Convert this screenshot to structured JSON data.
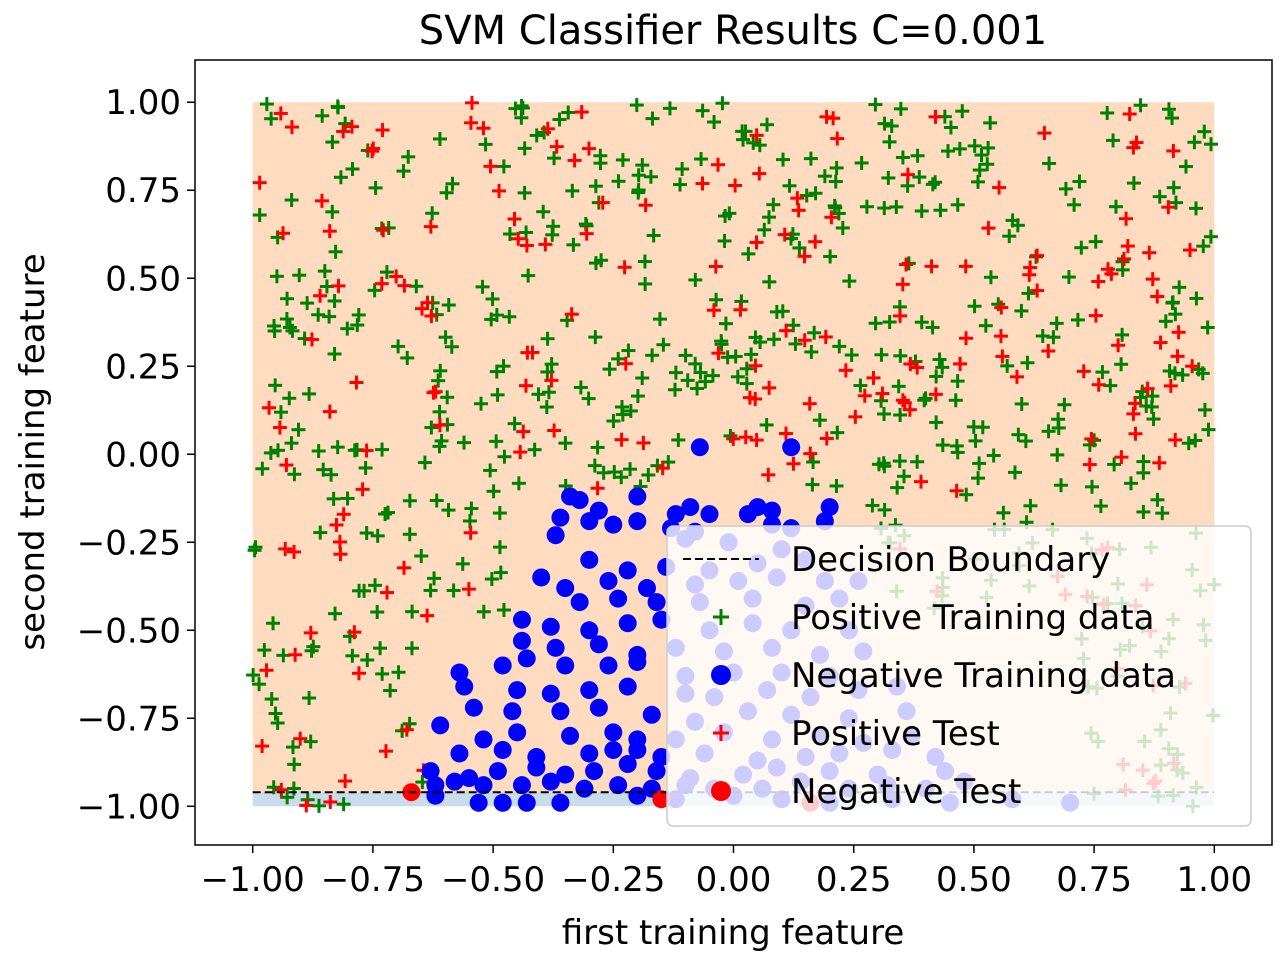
{
  "chart_data": {
    "type": "scatter",
    "title": "SVM Classifier Results C=0.001",
    "xlabel": "first training feature",
    "ylabel": "second training feature",
    "xlim": [
      -1.12,
      1.12
    ],
    "ylim": [
      -1.11,
      1.12
    ],
    "x_ticks": [
      -1.0,
      -0.75,
      -0.5,
      -0.25,
      0.0,
      0.25,
      0.5,
      0.75,
      1.0
    ],
    "y_ticks": [
      -1.0,
      -0.75,
      -0.5,
      -0.25,
      0.0,
      0.25,
      0.5,
      0.75,
      1.0
    ],
    "x_tick_labels": [
      "−1.00",
      "−0.75",
      "−0.50",
      "−0.25",
      "0.00",
      "0.25",
      "0.50",
      "0.75",
      "1.00"
    ],
    "y_tick_labels": [
      "−1.00",
      "−0.75",
      "−0.50",
      "−0.25",
      "0.00",
      "0.25",
      "0.50",
      "0.75",
      "1.00"
    ],
    "grid": false,
    "legend_position": "bottom-right",
    "decision_boundary_y": -0.96,
    "regions": [
      {
        "label": "positive region",
        "color": "#ffdcc0",
        "y_range": [
          -0.96,
          1.0
        ],
        "x_range": [
          -1.0,
          1.0
        ]
      },
      {
        "label": "negative region",
        "color": "#c9dcec",
        "y_range": [
          -1.0,
          -0.96
        ],
        "x_range": [
          -1.0,
          1.0
        ]
      }
    ],
    "legend": [
      {
        "label": "Decision Boundary",
        "marker": "dashed-line",
        "color": "#000000"
      },
      {
        "label": "Positive Training data",
        "marker": "plus",
        "color": "#008000"
      },
      {
        "label": "Negative Training data",
        "marker": "circle",
        "color": "#0000ff"
      },
      {
        "label": "Positive Test",
        "marker": "plus",
        "color": "#ff0000"
      },
      {
        "label": "Negative Test",
        "marker": "circle",
        "color": "#ff0000"
      }
    ],
    "series": [
      {
        "key": "positive_training",
        "marker": "plus",
        "color": "#008000",
        "count": 540,
        "seed": 11
      },
      {
        "key": "positive_test",
        "marker": "plus",
        "color": "#ff0000",
        "count": 210,
        "seed": 29
      },
      {
        "key": "negative_training",
        "marker": "circle",
        "color": "#0000ff",
        "points": [
          [
            -0.07,
            0.02
          ],
          [
            0.12,
            0.02
          ],
          [
            -0.34,
            -0.12
          ],
          [
            -0.32,
            -0.13
          ],
          [
            -0.28,
            -0.16
          ],
          [
            -0.2,
            -0.12
          ],
          [
            -0.12,
            -0.17
          ],
          [
            -0.09,
            -0.15
          ],
          [
            -0.05,
            -0.17
          ],
          [
            0.03,
            -0.17
          ],
          [
            0.05,
            -0.15
          ],
          [
            0.08,
            -0.16
          ],
          [
            0.2,
            -0.15
          ],
          [
            0.19,
            -0.19
          ],
          [
            0.12,
            -0.21
          ],
          [
            0.08,
            -0.2
          ],
          [
            -0.36,
            -0.18
          ],
          [
            -0.3,
            -0.19
          ],
          [
            -0.25,
            -0.2
          ],
          [
            -0.2,
            -0.19
          ],
          [
            -0.13,
            -0.21
          ],
          [
            -0.08,
            -0.22
          ],
          [
            -0.37,
            -0.23
          ],
          [
            -0.1,
            -0.24
          ],
          [
            -0.01,
            -0.25
          ],
          [
            0.1,
            -0.27
          ],
          [
            0.15,
            -0.3
          ],
          [
            -0.3,
            -0.3
          ],
          [
            -0.22,
            -0.33
          ],
          [
            -0.14,
            -0.32
          ],
          [
            -0.05,
            -0.33
          ],
          [
            0.05,
            -0.31
          ],
          [
            -0.4,
            -0.35
          ],
          [
            -0.35,
            -0.38
          ],
          [
            -0.26,
            -0.36
          ],
          [
            -0.18,
            -0.38
          ],
          [
            -0.08,
            -0.37
          ],
          [
            0.01,
            -0.36
          ],
          [
            0.09,
            -0.35
          ],
          [
            0.19,
            -0.36
          ],
          [
            0.26,
            -0.36
          ],
          [
            -0.32,
            -0.42
          ],
          [
            -0.24,
            -0.41
          ],
          [
            -0.16,
            -0.42
          ],
          [
            -0.07,
            -0.42
          ],
          [
            0.04,
            -0.41
          ],
          [
            0.15,
            -0.43
          ],
          [
            0.22,
            -0.41
          ],
          [
            -0.44,
            -0.47
          ],
          [
            -0.38,
            -0.49
          ],
          [
            -0.3,
            -0.5
          ],
          [
            -0.22,
            -0.48
          ],
          [
            -0.15,
            -0.47
          ],
          [
            -0.05,
            -0.5
          ],
          [
            0.04,
            -0.48
          ],
          [
            0.12,
            -0.5
          ],
          [
            0.24,
            -0.5
          ],
          [
            -0.44,
            -0.53
          ],
          [
            -0.37,
            -0.55
          ],
          [
            -0.28,
            -0.54
          ],
          [
            -0.2,
            -0.57
          ],
          [
            -0.12,
            -0.55
          ],
          [
            -0.02,
            -0.56
          ],
          [
            0.08,
            -0.55
          ],
          [
            0.18,
            -0.57
          ],
          [
            0.27,
            -0.56
          ],
          [
            -0.57,
            -0.62
          ],
          [
            -0.48,
            -0.6
          ],
          [
            -0.43,
            -0.58
          ],
          [
            -0.35,
            -0.6
          ],
          [
            -0.26,
            -0.6
          ],
          [
            -0.2,
            -0.59
          ],
          [
            -0.1,
            -0.63
          ],
          [
            0.0,
            -0.62
          ],
          [
            0.1,
            -0.62
          ],
          [
            0.2,
            -0.63
          ],
          [
            -0.56,
            -0.66
          ],
          [
            -0.45,
            -0.67
          ],
          [
            -0.38,
            -0.68
          ],
          [
            -0.3,
            -0.67
          ],
          [
            -0.22,
            -0.66
          ],
          [
            -0.1,
            -0.68
          ],
          [
            -0.04,
            -0.69
          ],
          [
            0.07,
            -0.67
          ],
          [
            0.16,
            -0.69
          ],
          [
            0.26,
            -0.67
          ],
          [
            0.34,
            -0.66
          ],
          [
            -0.54,
            -0.72
          ],
          [
            -0.46,
            -0.73
          ],
          [
            -0.36,
            -0.73
          ],
          [
            -0.28,
            -0.72
          ],
          [
            -0.17,
            -0.74
          ],
          [
            -0.08,
            -0.76
          ],
          [
            0.03,
            -0.73
          ],
          [
            0.12,
            -0.74
          ],
          [
            0.24,
            -0.75
          ],
          [
            0.36,
            -0.73
          ],
          [
            -0.61,
            -0.77
          ],
          [
            -0.52,
            -0.81
          ],
          [
            -0.45,
            -0.79
          ],
          [
            -0.34,
            -0.8
          ],
          [
            -0.25,
            -0.79
          ],
          [
            -0.2,
            -0.81
          ],
          [
            -0.12,
            -0.81
          ],
          [
            -0.02,
            -0.79
          ],
          [
            0.08,
            -0.81
          ],
          [
            0.18,
            -0.8
          ],
          [
            0.27,
            -0.82
          ],
          [
            0.37,
            -0.8
          ],
          [
            -0.57,
            -0.85
          ],
          [
            -0.48,
            -0.84
          ],
          [
            -0.41,
            -0.86
          ],
          [
            -0.3,
            -0.85
          ],
          [
            -0.25,
            -0.84
          ],
          [
            -0.2,
            -0.84
          ],
          [
            -0.15,
            -0.86
          ],
          [
            -0.06,
            -0.85
          ],
          [
            0.05,
            -0.87
          ],
          [
            0.15,
            -0.86
          ],
          [
            0.22,
            -0.85
          ],
          [
            0.33,
            -0.84
          ],
          [
            0.42,
            -0.86
          ],
          [
            -0.63,
            -0.9
          ],
          [
            -0.55,
            -0.92
          ],
          [
            -0.49,
            -0.9
          ],
          [
            -0.41,
            -0.89
          ],
          [
            -0.35,
            -0.91
          ],
          [
            -0.29,
            -0.9
          ],
          [
            -0.22,
            -0.88
          ],
          [
            -0.16,
            -0.9
          ],
          [
            -0.09,
            -0.92
          ],
          [
            0.02,
            -0.91
          ],
          [
            0.09,
            -0.89
          ],
          [
            0.2,
            -0.9
          ],
          [
            0.3,
            -0.91
          ],
          [
            0.44,
            -0.9
          ],
          [
            -0.62,
            -0.94
          ],
          [
            -0.58,
            -0.93
          ],
          [
            -0.52,
            -0.94
          ],
          [
            -0.44,
            -0.94
          ],
          [
            -0.38,
            -0.93
          ],
          [
            -0.31,
            -0.95
          ],
          [
            -0.24,
            -0.94
          ],
          [
            -0.17,
            -0.95
          ],
          [
            -0.1,
            -0.94
          ],
          [
            -0.04,
            -0.95
          ],
          [
            0.06,
            -0.95
          ],
          [
            0.14,
            -0.93
          ],
          [
            0.24,
            -0.95
          ],
          [
            0.32,
            -0.94
          ],
          [
            0.4,
            -0.95
          ],
          [
            0.48,
            -0.93
          ],
          [
            -0.62,
            -0.97
          ],
          [
            -0.53,
            -0.99
          ],
          [
            -0.48,
            -0.99
          ],
          [
            -0.43,
            -0.99
          ],
          [
            -0.36,
            -0.99
          ],
          [
            -0.2,
            -0.97
          ],
          [
            -0.12,
            -0.98
          ],
          [
            0.0,
            -0.97
          ],
          [
            0.1,
            -0.98
          ],
          [
            0.2,
            -0.99
          ],
          [
            0.33,
            -0.98
          ],
          [
            0.45,
            -0.99
          ],
          [
            0.58,
            -0.98
          ],
          [
            0.7,
            -0.99
          ]
        ]
      },
      {
        "key": "negative_test",
        "marker": "circle",
        "color": "#ff0000",
        "points": [
          [
            -0.67,
            -0.96
          ],
          [
            -0.15,
            -0.98
          ],
          [
            0.16,
            -0.99
          ]
        ]
      }
    ]
  }
}
